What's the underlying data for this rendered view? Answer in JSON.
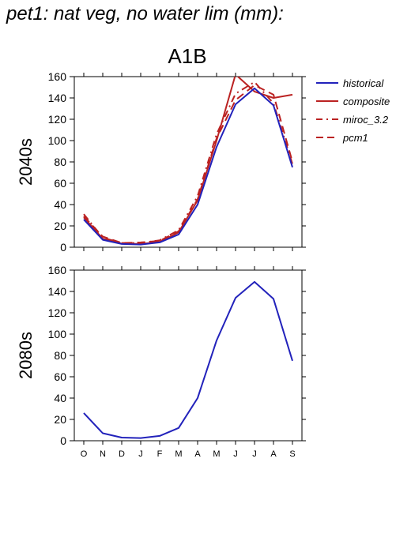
{
  "title": "pet1: nat veg, no water lim (mm):",
  "scenario": "A1B",
  "colors": {
    "historical": "#2222bb",
    "red": "#bb2222",
    "axis": "#000000"
  },
  "chart_data": [
    {
      "type": "line",
      "panel": "2040s",
      "ylabel": "2040s",
      "ylim": [
        0,
        160
      ],
      "yticks": [
        0,
        20,
        40,
        60,
        80,
        100,
        120,
        140,
        160
      ],
      "categories": [
        "O",
        "N",
        "D",
        "J",
        "F",
        "M",
        "A",
        "M",
        "J",
        "J",
        "A",
        "S"
      ],
      "series": [
        {
          "name": "historical",
          "style": "solid",
          "color": "#2222bb",
          "values": [
            26,
            7,
            3,
            2.5,
            4.5,
            12,
            40,
            94,
            134,
            149,
            133,
            75
          ]
        },
        {
          "name": "composite",
          "style": "solid",
          "color": "#bb2222",
          "values": [
            28,
            8,
            3.5,
            3,
            5,
            14,
            44,
            100,
            162,
            146,
            140,
            143
          ]
        },
        {
          "name": "miroc_3.2",
          "style": "dashdot",
          "color": "#bb2222",
          "values": [
            31,
            9,
            4,
            4,
            6.5,
            16,
            48,
            106,
            144,
            155,
            135,
            78
          ]
        },
        {
          "name": "pcm1",
          "style": "dash",
          "color": "#bb2222",
          "values": [
            29,
            10,
            4,
            4.5,
            6,
            15,
            45,
            102,
            138,
            152,
            143,
            80
          ]
        }
      ]
    },
    {
      "type": "line",
      "panel": "2080s",
      "ylabel": "2080s",
      "ylim": [
        0,
        160
      ],
      "yticks": [
        0,
        20,
        40,
        60,
        80,
        100,
        120,
        140,
        160
      ],
      "categories": [
        "O",
        "N",
        "D",
        "J",
        "F",
        "M",
        "A",
        "M",
        "J",
        "J",
        "A",
        "S"
      ],
      "series": [
        {
          "name": "historical",
          "style": "solid",
          "color": "#2222bb",
          "values": [
            26,
            7,
            3,
            2.5,
            4.5,
            12,
            40,
            94,
            134,
            149,
            133,
            75
          ]
        }
      ]
    }
  ],
  "legend": [
    "historical",
    "composite",
    "miroc_3.2",
    "pcm1"
  ]
}
